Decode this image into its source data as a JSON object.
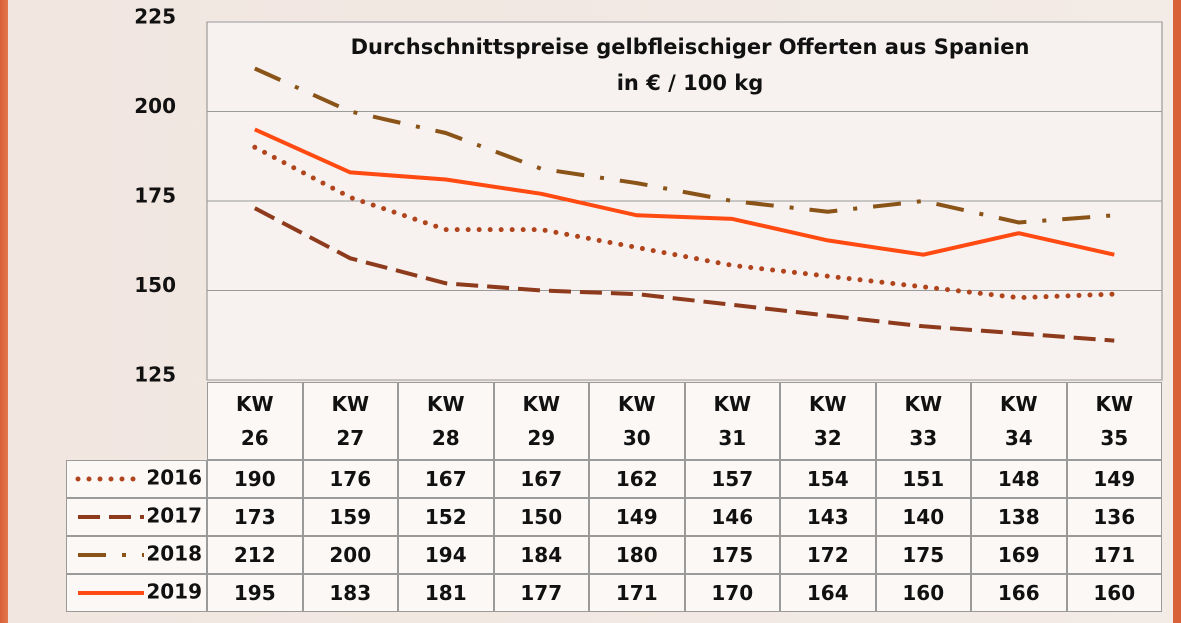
{
  "chart_data": {
    "type": "line",
    "title": "Durchschnittspreise gelbfleischiger Offerten aus Spanien",
    "subtitle": "in € / 100 kg",
    "categories": [
      "KW\n26",
      "KW\n27",
      "KW\n28",
      "KW\n29",
      "KW\n30",
      "KW\n31",
      "KW\n32",
      "KW\n33",
      "KW\n34",
      "KW\n35"
    ],
    "ylim": [
      125,
      225
    ],
    "yticks": [
      225,
      200,
      175,
      150,
      125
    ],
    "grid": true,
    "series": [
      {
        "name": "2016",
        "color": "#b0441c",
        "style": "dotted",
        "values": [
          190,
          176,
          167,
          167,
          162,
          157,
          154,
          151,
          148,
          149
        ]
      },
      {
        "name": "2017",
        "color": "#8e3a1c",
        "style": "dashed",
        "values": [
          173,
          159,
          152,
          150,
          149,
          146,
          143,
          140,
          138,
          136
        ]
      },
      {
        "name": "2018",
        "color": "#8a5418",
        "style": "dashdot",
        "values": [
          212,
          200,
          194,
          184,
          180,
          175,
          172,
          175,
          169,
          171
        ]
      },
      {
        "name": "2019",
        "color": "#ff4a12",
        "style": "solid",
        "values": [
          195,
          183,
          181,
          177,
          171,
          170,
          164,
          160,
          166,
          160
        ]
      }
    ]
  }
}
